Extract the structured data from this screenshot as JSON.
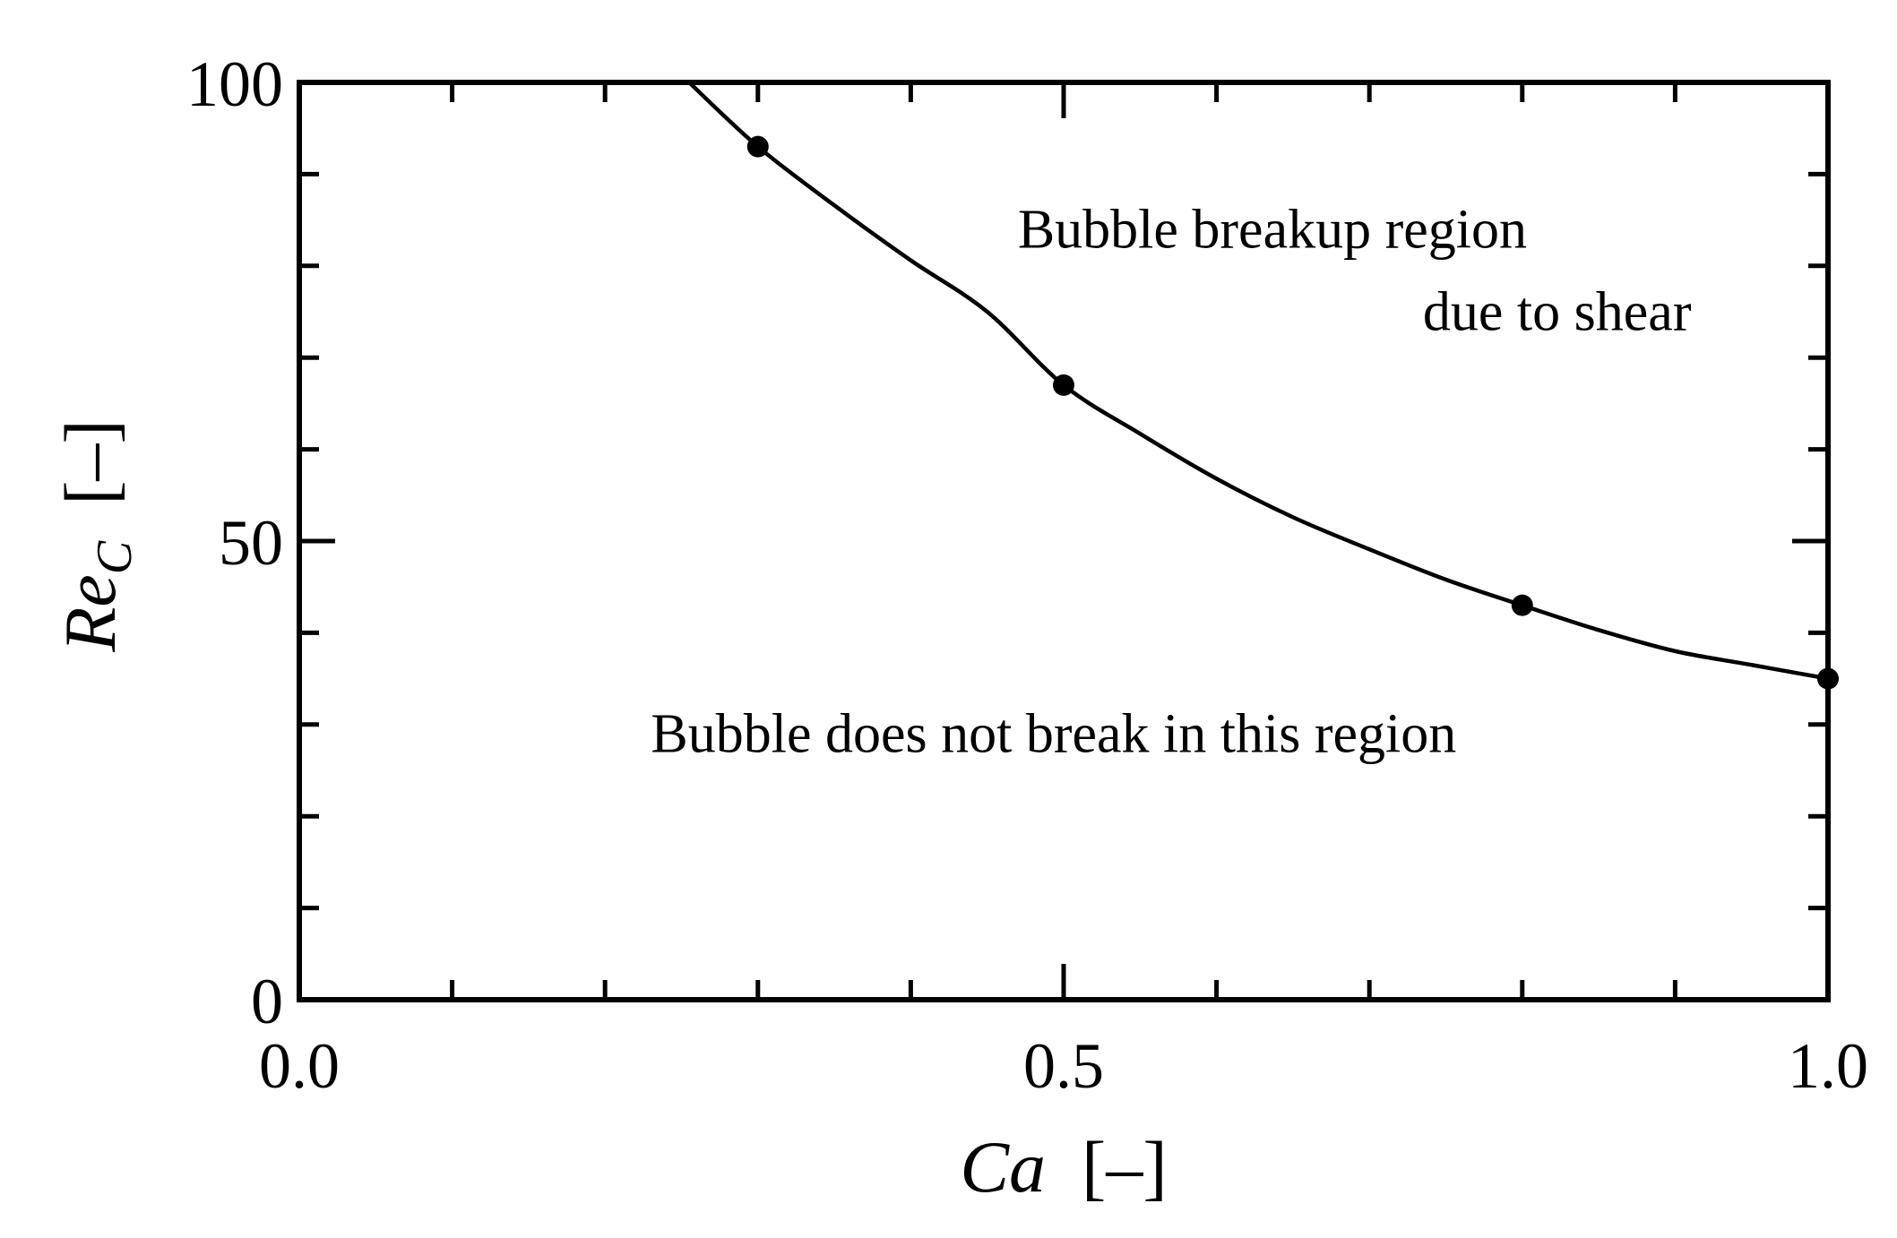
{
  "chart_data": {
    "type": "line",
    "title": "",
    "xlabel": {
      "symbol": "Ca",
      "unit": "[–]"
    },
    "ylabel": {
      "symbol": "Re",
      "subscript": "C",
      "unit": "[–]"
    },
    "xlim": [
      0.0,
      1.0
    ],
    "ylim": [
      0,
      100
    ],
    "xticks": {
      "labels": [
        "0.0",
        "0.5",
        "1.0"
      ],
      "values": [
        0.0,
        0.5,
        1.0
      ],
      "minor_step": 0.1
    },
    "yticks": {
      "labels": [
        "0",
        "50",
        "100"
      ],
      "values": [
        0,
        50,
        100
      ],
      "minor_step": 10
    },
    "grid": false,
    "series": [
      {
        "points": {
          "x": [
            0.3,
            0.5,
            0.8,
            1.0
          ],
          "y": [
            93,
            67,
            43,
            35
          ]
        },
        "curve": {
          "x": [
            0.255,
            0.3,
            0.35,
            0.4,
            0.45,
            0.5,
            0.55,
            0.6,
            0.65,
            0.7,
            0.75,
            0.8,
            0.85,
            0.9,
            0.95,
            1.0
          ],
          "y": [
            100,
            93.0,
            86.6,
            80.6,
            75.0,
            67.0,
            61.7,
            56.8,
            52.6,
            49.1,
            45.8,
            43.0,
            40.3,
            38.0,
            36.5,
            35.0
          ]
        }
      }
    ],
    "annotations": [
      {
        "text": "Bubble breakup region",
        "x": 0.47,
        "y": 82
      },
      {
        "text": "due to shear",
        "x": 0.735,
        "y": 73
      },
      {
        "text": "Bubble does not break in this region",
        "x": 0.23,
        "y": 27
      }
    ]
  }
}
